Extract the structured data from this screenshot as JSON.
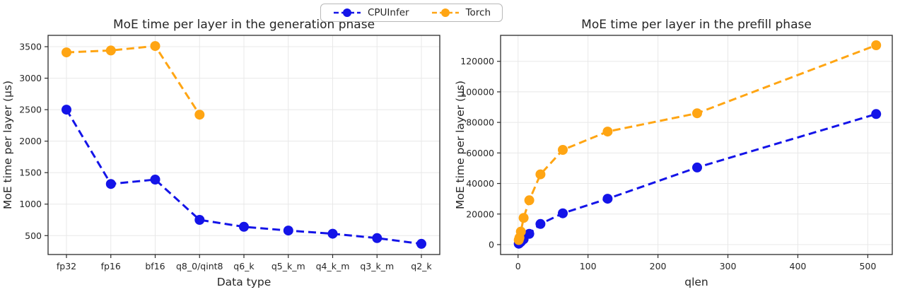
{
  "legend": {
    "items": [
      {
        "label": "CPUInfer",
        "color": "#1414e8"
      },
      {
        "label": "Torch",
        "color": "#ffa513"
      }
    ]
  },
  "chart_data": [
    {
      "type": "line",
      "title": "MoE time per layer in the generation phase",
      "xlabel": "Data type",
      "ylabel": "MoE time per layer (µs)",
      "line_style": "dashed",
      "grid": true,
      "legend_position": "top-center-figure",
      "categories": [
        "fp32",
        "fp16",
        "bf16",
        "q8_0/qint8",
        "q6_k",
        "q5_k_m",
        "q4_k_m",
        "q3_k_m",
        "q2_k"
      ],
      "yticks": [
        500,
        1000,
        1500,
        2000,
        2500,
        3000,
        3500
      ],
      "ylim": [
        200,
        3680
      ],
      "series": [
        {
          "name": "CPUInfer",
          "color": "#1414e8",
          "values": [
            2500,
            1320,
            1390,
            750,
            640,
            580,
            530,
            460,
            370
          ]
        },
        {
          "name": "Torch",
          "color": "#ffa513",
          "values": [
            3410,
            3440,
            3510,
            2420,
            null,
            null,
            null,
            null,
            null
          ]
        }
      ]
    },
    {
      "type": "line",
      "title": "MoE time per layer in the prefill phase",
      "xlabel": "qlen",
      "ylabel": "MoE time per layer (µs)",
      "line_style": "dashed",
      "grid": true,
      "x": [
        1,
        2,
        4,
        8,
        16,
        32,
        64,
        128,
        256,
        512
      ],
      "xticks": [
        0,
        100,
        200,
        300,
        400,
        500
      ],
      "xlim": [
        -25,
        535
      ],
      "yticks": [
        0,
        20000,
        40000,
        60000,
        80000,
        100000,
        120000
      ],
      "ylim": [
        -6500,
        137000
      ],
      "series": [
        {
          "name": "CPUInfer",
          "color": "#1414e8",
          "values": [
            600,
            1000,
            1800,
            3500,
            7000,
            13500,
            20500,
            30000,
            50500,
            85500
          ]
        },
        {
          "name": "Torch",
          "color": "#ffa513",
          "values": [
            3000,
            4500,
            8500,
            17500,
            29000,
            46000,
            62000,
            74000,
            86000,
            130500
          ]
        }
      ]
    }
  ]
}
